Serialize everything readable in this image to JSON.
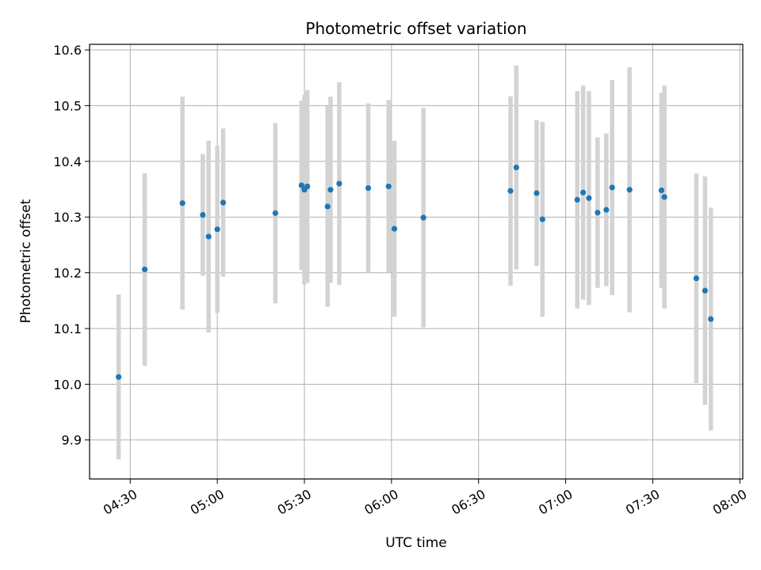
{
  "chart_data": {
    "type": "scatter",
    "title": "Photometric offset variation",
    "xlabel": "UTC time",
    "ylabel": "Photometric offset",
    "grid": true,
    "xlim": [
      "04:16",
      "08:01"
    ],
    "ylim": [
      9.83,
      10.61
    ],
    "x_ticks": [
      "04:30",
      "05:00",
      "05:30",
      "06:00",
      "06:30",
      "07:00",
      "07:30",
      "08:00"
    ],
    "y_ticks": [
      9.9,
      10.0,
      10.1,
      10.2,
      10.3,
      10.4,
      10.5,
      10.6
    ],
    "y_tick_labels": [
      "9.9",
      "10.0",
      "10.1",
      "10.2",
      "10.3",
      "10.4",
      "10.5",
      "10.6"
    ],
    "marker_color": "#1f77b4",
    "errorbar_color": "#d3d3d3",
    "series": [
      {
        "points": [
          {
            "x": "04:26",
            "y": 10.013,
            "err": 0.148
          },
          {
            "x": "04:35",
            "y": 10.206,
            "err": 0.173
          },
          {
            "x": "04:48",
            "y": 10.325,
            "err": 0.191
          },
          {
            "x": "04:55",
            "y": 10.304,
            "err": 0.109
          },
          {
            "x": "04:57",
            "y": 10.265,
            "err": 0.172
          },
          {
            "x": "05:00",
            "y": 10.278,
            "err": 0.15
          },
          {
            "x": "05:02",
            "y": 10.326,
            "err": 0.133
          },
          {
            "x": "05:20",
            "y": 10.307,
            "err": 0.162
          },
          {
            "x": "05:29",
            "y": 10.357,
            "err": 0.152
          },
          {
            "x": "05:30",
            "y": 10.349,
            "err": 0.17
          },
          {
            "x": "05:31",
            "y": 10.355,
            "err": 0.173
          },
          {
            "x": "05:38",
            "y": 10.319,
            "err": 0.18
          },
          {
            "x": "05:39",
            "y": 10.349,
            "err": 0.167
          },
          {
            "x": "05:42",
            "y": 10.36,
            "err": 0.182
          },
          {
            "x": "05:52",
            "y": 10.352,
            "err": 0.152
          },
          {
            "x": "05:59",
            "y": 10.355,
            "err": 0.155
          },
          {
            "x": "06:01",
            "y": 10.279,
            "err": 0.158
          },
          {
            "x": "06:11",
            "y": 10.299,
            "err": 0.197
          },
          {
            "x": "06:41",
            "y": 10.347,
            "err": 0.17
          },
          {
            "x": "06:43",
            "y": 10.389,
            "err": 0.183
          },
          {
            "x": "06:50",
            "y": 10.343,
            "err": 0.131
          },
          {
            "x": "06:52",
            "y": 10.296,
            "err": 0.175
          },
          {
            "x": "07:04",
            "y": 10.331,
            "err": 0.195
          },
          {
            "x": "07:06",
            "y": 10.344,
            "err": 0.192
          },
          {
            "x": "07:08",
            "y": 10.334,
            "err": 0.192
          },
          {
            "x": "07:11",
            "y": 10.308,
            "err": 0.135
          },
          {
            "x": "07:14",
            "y": 10.313,
            "err": 0.137
          },
          {
            "x": "07:16",
            "y": 10.353,
            "err": 0.193
          },
          {
            "x": "07:22",
            "y": 10.349,
            "err": 0.22
          },
          {
            "x": "07:33",
            "y": 10.348,
            "err": 0.175
          },
          {
            "x": "07:34",
            "y": 10.336,
            "err": 0.2
          },
          {
            "x": "07:45",
            "y": 10.19,
            "err": 0.188
          },
          {
            "x": "07:48",
            "y": 10.168,
            "err": 0.205
          },
          {
            "x": "07:50",
            "y": 10.117,
            "err": 0.2
          }
        ]
      }
    ]
  }
}
